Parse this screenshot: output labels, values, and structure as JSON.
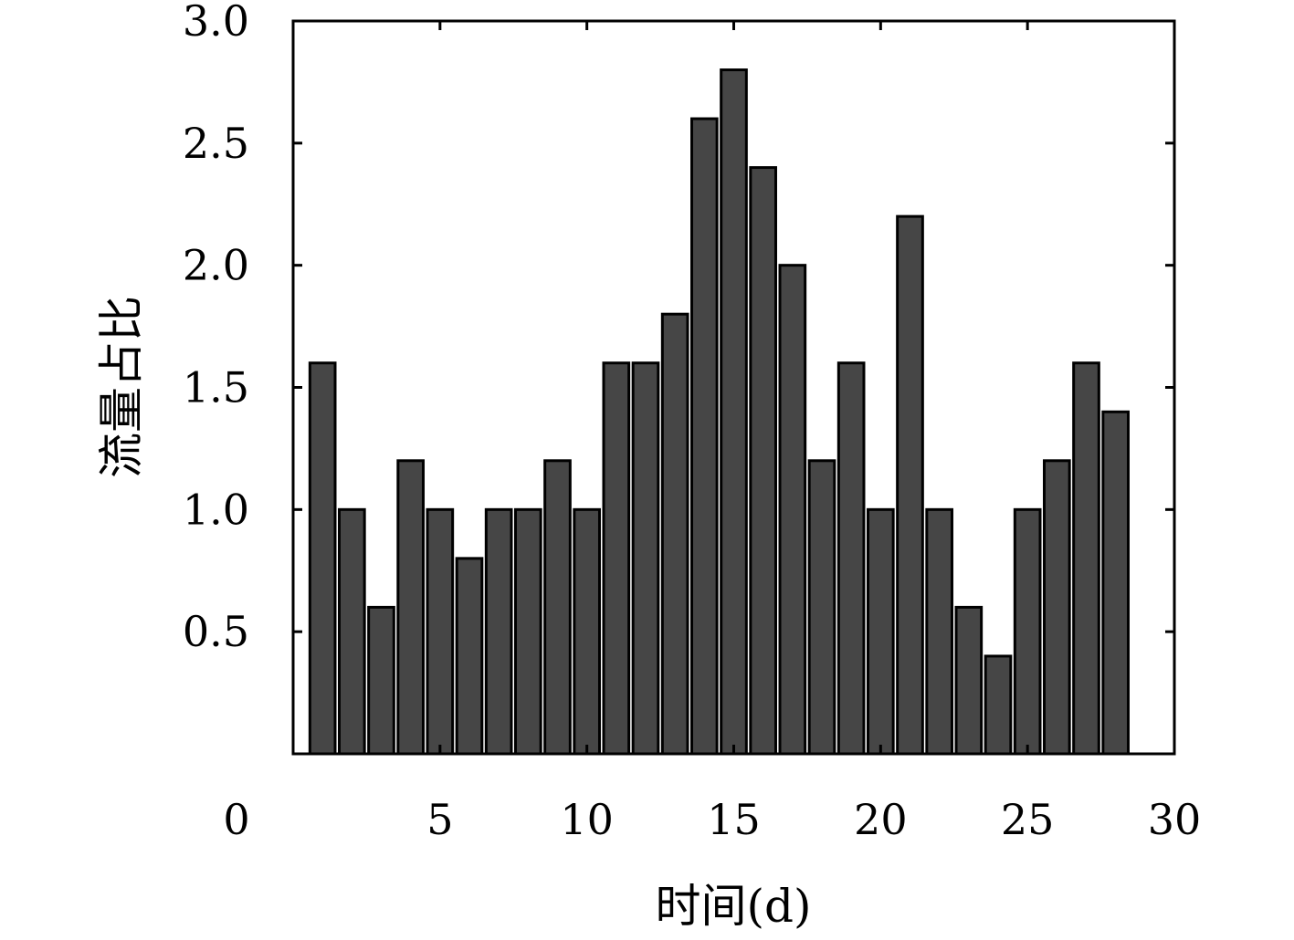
{
  "chart_data": {
    "type": "bar",
    "title": "",
    "xlabel": "时间(d)",
    "ylabel": "流量占比",
    "x": [
      1,
      2,
      3,
      4,
      5,
      6,
      7,
      8,
      9,
      10,
      11,
      12,
      13,
      14,
      15,
      16,
      17,
      18,
      19,
      20,
      21,
      22,
      23,
      24,
      25,
      26,
      27,
      28
    ],
    "values": [
      1.6,
      1.0,
      0.6,
      1.2,
      1.0,
      0.8,
      1.0,
      1.0,
      1.2,
      1.0,
      1.6,
      1.6,
      1.8,
      2.6,
      2.8,
      2.4,
      2.0,
      1.2,
      1.6,
      1.0,
      2.2,
      1.0,
      0.6,
      0.4,
      1.0,
      1.2,
      1.6,
      1.4
    ],
    "xlim": [
      0,
      30
    ],
    "ylim": [
      0,
      3.0
    ],
    "xticks": [
      0,
      5,
      10,
      15,
      20,
      25,
      30
    ],
    "xtick_labels": [
      "0",
      "5",
      "10",
      "15",
      "20",
      "25",
      "30"
    ],
    "yticks": [
      0.5,
      1.0,
      1.5,
      2.0,
      2.5,
      3.0
    ],
    "ytick_labels": [
      "0.5",
      "1.0",
      "1.5",
      "2.0",
      "2.5",
      "3.0"
    ],
    "bar_color": "#464646",
    "edge_color": "#000000",
    "grid": false,
    "legend": "none"
  }
}
